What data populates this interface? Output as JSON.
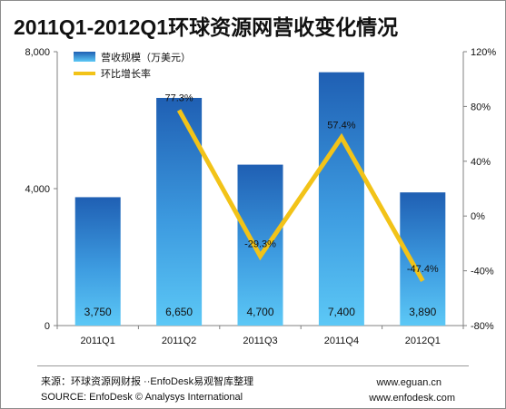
{
  "title": "2011Q1-2012Q1环球资源网营收变化情况",
  "chart_data": {
    "type": "bar",
    "categories": [
      "2011Q1",
      "2011Q2",
      "2011Q3",
      "2011Q4",
      "2012Q1"
    ],
    "series": [
      {
        "name": "营收规模（万美元）",
        "type": "bar",
        "axis": "left",
        "values": [
          3750,
          6650,
          4700,
          7400,
          3890
        ],
        "labels": [
          "3,750",
          "6,650",
          "4,700",
          "7,400",
          "3,890"
        ],
        "color": "#2e7fd0"
      },
      {
        "name": "环比增长率",
        "type": "line",
        "axis": "right",
        "values": [
          null,
          77.3,
          -29.3,
          57.4,
          -47.4
        ],
        "labels": [
          "",
          "77.3%",
          "-29.3%",
          "57.4%",
          "-47.4%"
        ],
        "color": "#f2c318"
      }
    ],
    "left_axis": {
      "ylim": [
        0,
        8000
      ],
      "ticks": [
        0,
        4000,
        8000
      ],
      "tick_labels": [
        "0",
        "4,000",
        "8,000"
      ]
    },
    "right_axis": {
      "ylim": [
        -80,
        120
      ],
      "ticks": [
        -80,
        -40,
        0,
        40,
        80,
        120
      ],
      "tick_labels": [
        "-80%",
        "-40%",
        "0%",
        "40%",
        "80%",
        "120%"
      ]
    },
    "legend_position": "top-left",
    "grid": false
  },
  "footer": {
    "source_cn": "来源：环球资源网财报 ··EnfoDesk易观智库整理",
    "source_en": "SOURCE: EnfoDesk © Analysys International",
    "url1": "www.eguan.cn",
    "url2": "www.enfodesk.com"
  }
}
